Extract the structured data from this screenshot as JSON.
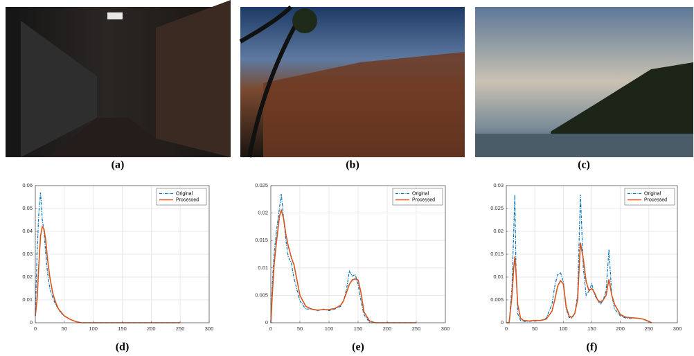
{
  "images": [
    {
      "caption": "(a)"
    },
    {
      "caption": "(b)"
    },
    {
      "caption": "(c)"
    }
  ],
  "chart_data": [
    {
      "type": "line",
      "caption": "(d)",
      "legend": "upper right",
      "grid": true,
      "xlim": [
        0,
        300
      ],
      "xticks": [
        0,
        50,
        100,
        150,
        200,
        250,
        300
      ],
      "ylim": [
        0,
        0.06
      ],
      "yticks": [
        0,
        0.01,
        0.02,
        0.03,
        0.04,
        0.05,
        0.06
      ],
      "x": [
        0,
        3,
        6,
        9,
        12,
        15,
        18,
        21,
        25,
        30,
        35,
        40,
        45,
        50,
        60,
        70,
        80,
        90,
        100,
        150,
        200,
        250
      ],
      "series": [
        {
          "name": "Original",
          "color": "#0072bd",
          "values": [
            0.003,
            0.03,
            0.048,
            0.057,
            0.045,
            0.04,
            0.03,
            0.022,
            0.015,
            0.011,
            0.008,
            0.006,
            0.004,
            0.003,
            0.0015,
            0.0005,
            0,
            0,
            0,
            0,
            0,
            0
          ]
        },
        {
          "name": "Processed",
          "color": "#d95319",
          "values": [
            0.003,
            0.01,
            0.025,
            0.038,
            0.042,
            0.041,
            0.036,
            0.028,
            0.02,
            0.013,
            0.009,
            0.006,
            0.0045,
            0.003,
            0.0015,
            0.0005,
            0,
            0,
            0,
            0,
            0,
            0
          ]
        }
      ]
    },
    {
      "type": "line",
      "caption": "(e)",
      "legend": "upper right",
      "grid": true,
      "xlim": [
        0,
        300
      ],
      "xticks": [
        0,
        50,
        100,
        150,
        200,
        250,
        300
      ],
      "ylim": [
        0,
        0.025
      ],
      "yticks": [
        0,
        0.005,
        0.01,
        0.015,
        0.02,
        0.025
      ],
      "x": [
        0,
        3,
        6,
        10,
        15,
        18,
        22,
        26,
        30,
        35,
        40,
        50,
        60,
        70,
        80,
        90,
        100,
        110,
        120,
        125,
        130,
        135,
        140,
        145,
        150,
        155,
        160,
        170,
        180,
        200,
        250
      ],
      "series": [
        {
          "name": "Original",
          "color": "#0072bd",
          "values": [
            0,
            0.008,
            0.013,
            0.017,
            0.021,
            0.0235,
            0.019,
            0.015,
            0.012,
            0.011,
            0.008,
            0.004,
            0.0025,
            0.0025,
            0.0022,
            0.0025,
            0.0022,
            0.0025,
            0.003,
            0.004,
            0.006,
            0.0094,
            0.0085,
            0.0088,
            0.007,
            0.004,
            0.0015,
            0,
            0,
            0,
            0
          ]
        },
        {
          "name": "Processed",
          "color": "#d95319",
          "values": [
            0,
            0.006,
            0.011,
            0.015,
            0.0195,
            0.0205,
            0.019,
            0.016,
            0.014,
            0.012,
            0.0105,
            0.005,
            0.003,
            0.0025,
            0.0023,
            0.0024,
            0.0024,
            0.0026,
            0.0032,
            0.004,
            0.0055,
            0.007,
            0.0078,
            0.008,
            0.0078,
            0.0055,
            0.002,
            0.0003,
            0,
            0,
            0
          ]
        }
      ]
    },
    {
      "type": "line",
      "caption": "(f)",
      "legend": "upper right",
      "grid": true,
      "xlim": [
        0,
        300
      ],
      "xticks": [
        0,
        50,
        100,
        150,
        200,
        250,
        300
      ],
      "ylim": [
        0,
        0.03
      ],
      "yticks": [
        0,
        0.005,
        0.01,
        0.015,
        0.02,
        0.025,
        0.03
      ],
      "x": [
        0,
        5,
        10,
        13,
        15,
        17,
        20,
        25,
        30,
        40,
        50,
        60,
        70,
        80,
        85,
        90,
        95,
        100,
        105,
        110,
        115,
        120,
        125,
        130,
        135,
        140,
        145,
        150,
        155,
        160,
        165,
        170,
        175,
        180,
        185,
        190,
        200,
        210,
        220,
        230,
        240,
        250,
        255
      ],
      "series": [
        {
          "name": "Original",
          "color": "#0072bd",
          "values": [
            0,
            0,
            0.008,
            0.02,
            0.028,
            0.012,
            0.002,
            0.0005,
            0.0003,
            0.0003,
            0.0004,
            0.0005,
            0.001,
            0.004,
            0.008,
            0.0105,
            0.011,
            0.009,
            0.003,
            0.0012,
            0.001,
            0.002,
            0.006,
            0.028,
            0.012,
            0.006,
            0.007,
            0.0085,
            0.006,
            0.005,
            0.004,
            0.005,
            0.007,
            0.016,
            0.006,
            0.003,
            0.0015,
            0.001,
            0.001,
            0.001,
            0.0008,
            0.0002,
            0
          ]
        },
        {
          "name": "Processed",
          "color": "#d95319",
          "values": [
            0,
            0,
            0.006,
            0.012,
            0.0145,
            0.011,
            0.004,
            0.001,
            0.0005,
            0.0004,
            0.0005,
            0.0005,
            0.0008,
            0.0025,
            0.005,
            0.008,
            0.0092,
            0.0085,
            0.0035,
            0.0015,
            0.0012,
            0.002,
            0.005,
            0.0175,
            0.014,
            0.009,
            0.007,
            0.0075,
            0.0065,
            0.005,
            0.0045,
            0.005,
            0.006,
            0.0095,
            0.006,
            0.004,
            0.0018,
            0.0012,
            0.0011,
            0.001,
            0.0008,
            0.0003,
            0
          ]
        }
      ]
    }
  ]
}
